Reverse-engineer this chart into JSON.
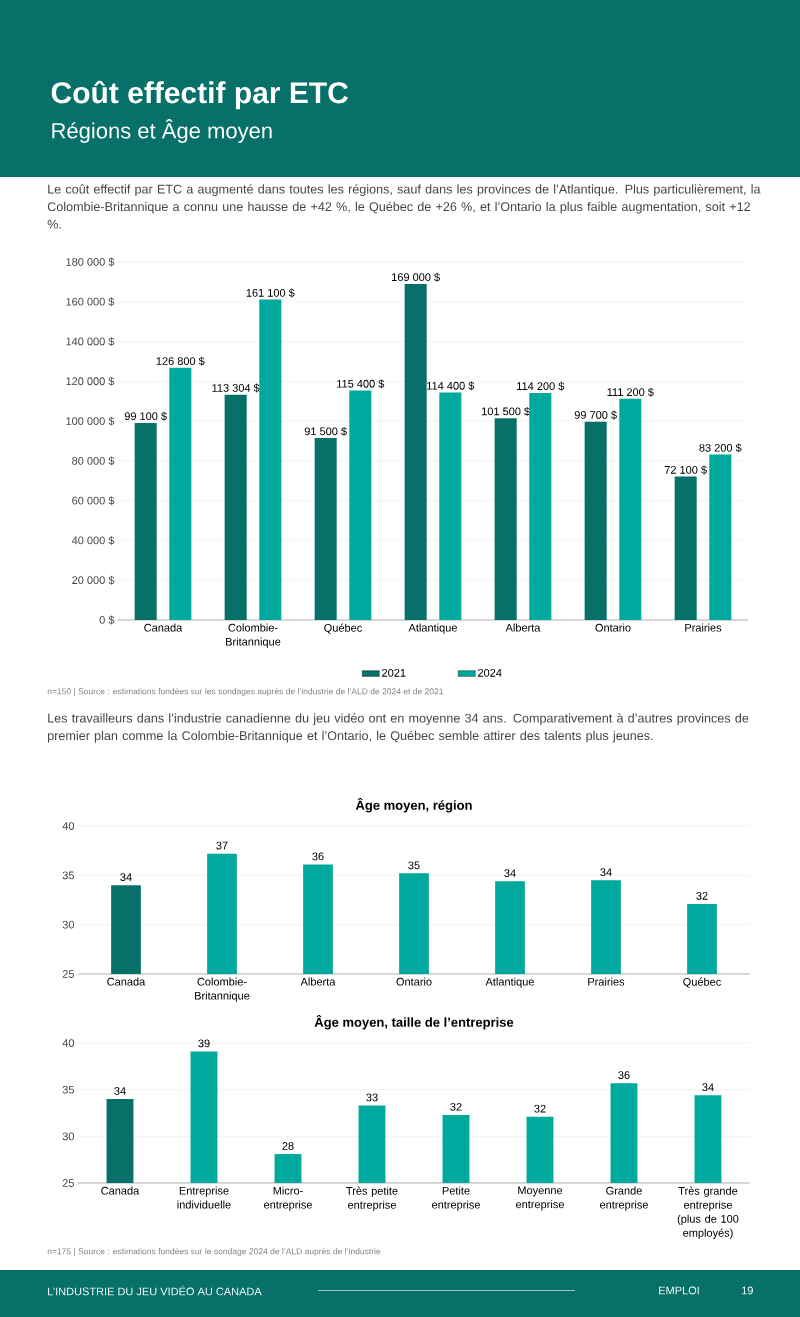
{
  "chart_data": [
    {
      "type": "bar",
      "title": "Coût effectif par ETC",
      "subtitle": "Régions et Âge moyen",
      "categories": [
        "Canada",
        "Colombie-Britannique",
        "Québec",
        "Atlantique",
        "Alberta",
        "Ontario",
        "Prairies"
      ],
      "series": [
        {
          "name": "2021",
          "color": "#077068",
          "values": [
            99100,
            113304,
            91500,
            169000,
            101500,
            99700,
            72100
          ],
          "value_labels": [
            "99 100 $",
            "113 304 $",
            "91 500 $",
            "169 000 $",
            "101 500 $",
            "99 700 $",
            "72 100 $"
          ]
        },
        {
          "name": "2024",
          "color": "#00a99d",
          "values": [
            126800,
            161100,
            115400,
            114400,
            114200,
            111200,
            83200
          ],
          "value_labels": [
            "126 800 $",
            "161 100 $",
            "115 400 $",
            "114 400 $",
            "114 200 $",
            "111 200 $",
            "83 200 $"
          ]
        }
      ],
      "ylim": [
        0,
        180000
      ],
      "yticks": [
        {
          "value": 0,
          "label": "0 $"
        },
        {
          "value": 20000,
          "label": "20 000 $"
        },
        {
          "value": 40000,
          "label": "40 000 $"
        },
        {
          "value": 60000,
          "label": "60 000 $"
        },
        {
          "value": 80000,
          "label": "80 000 $"
        },
        {
          "value": 100000,
          "label": "100 000 $"
        },
        {
          "value": 120000,
          "label": "120 000 $"
        },
        {
          "value": 140000,
          "label": "140 000 $"
        },
        {
          "value": 160000,
          "label": "160 000 $"
        },
        {
          "value": 180000,
          "label": "180 000 $"
        }
      ],
      "grid": "y",
      "legend": "bottom",
      "annotations": [
        "Le coût effectif par ETC a augmenté dans toutes les régions, sauf dans les provinces de l’Atlantique. Plus particulièrement, la Colombie-Britannique a connu une hausse de +42 %, le Québec de +26 %, et l’Ontario la plus faible augmentation, soit +12 %.",
        "n=150 | Source : estimations fondées sur les sondages auprès de l’industrie de l’ALD de 2024 et de 2021",
        "Les travailleurs dans l’industrie canadienne du jeu vidéo ont en moyenne 34 ans. Comparativement à d’autres provinces de premier plan comme la Colombie-Britannique et l’Ontario, le Québec semble attirer des talents plus jeunes."
      ]
    },
    {
      "type": "bar",
      "title": "Âge moyen, région",
      "categories": [
        "Canada",
        "Colombie-Britannique",
        "Alberta",
        "Ontario",
        "Atlantique",
        "Prairies",
        "Québec"
      ],
      "values": [
        34.0,
        37.2,
        36.1,
        35.2,
        34.4,
        34.5,
        32.1
      ],
      "value_labels": [
        "34",
        "37",
        "36",
        "35",
        "34",
        "34",
        "32"
      ],
      "colors": [
        "#077068",
        "#00a99d",
        "#00a99d",
        "#00a99d",
        "#00a99d",
        "#00a99d",
        "#00a99d"
      ],
      "ylim": [
        25,
        40
      ],
      "yticks": [
        25,
        30,
        35,
        40
      ],
      "grid": "y"
    },
    {
      "type": "bar",
      "title": "Âge moyen, taille de l’entreprise",
      "categories": [
        "Canada",
        "Entreprise individuelle",
        "Micro-entreprise",
        "Très petite entreprise",
        "Petite entreprise",
        "Moyenne entreprise",
        "Grande entreprise",
        "Très grande entreprise (plus de 100 employés)"
      ],
      "values": [
        34.0,
        39.1,
        28.1,
        33.3,
        32.3,
        32.1,
        35.7,
        34.4
      ],
      "value_labels": [
        "34",
        "39",
        "28",
        "33",
        "32",
        "32",
        "36",
        "34"
      ],
      "colors": [
        "#077068",
        "#00a99d",
        "#00a99d",
        "#00a99d",
        "#00a99d",
        "#00a99d",
        "#00a99d",
        "#00a99d"
      ],
      "ylim": [
        25,
        40
      ],
      "yticks": [
        25,
        30,
        35,
        40
      ],
      "grid": "y",
      "annotations": [
        "n=175 | Source : estimations fondées sur le sondage 2024 de l’ALD auprès de l’industrie",
        "L’INDUSTRIE DU JEU VIDÉO AU CANADA",
        "EMPLOI",
        "19"
      ]
    }
  ]
}
